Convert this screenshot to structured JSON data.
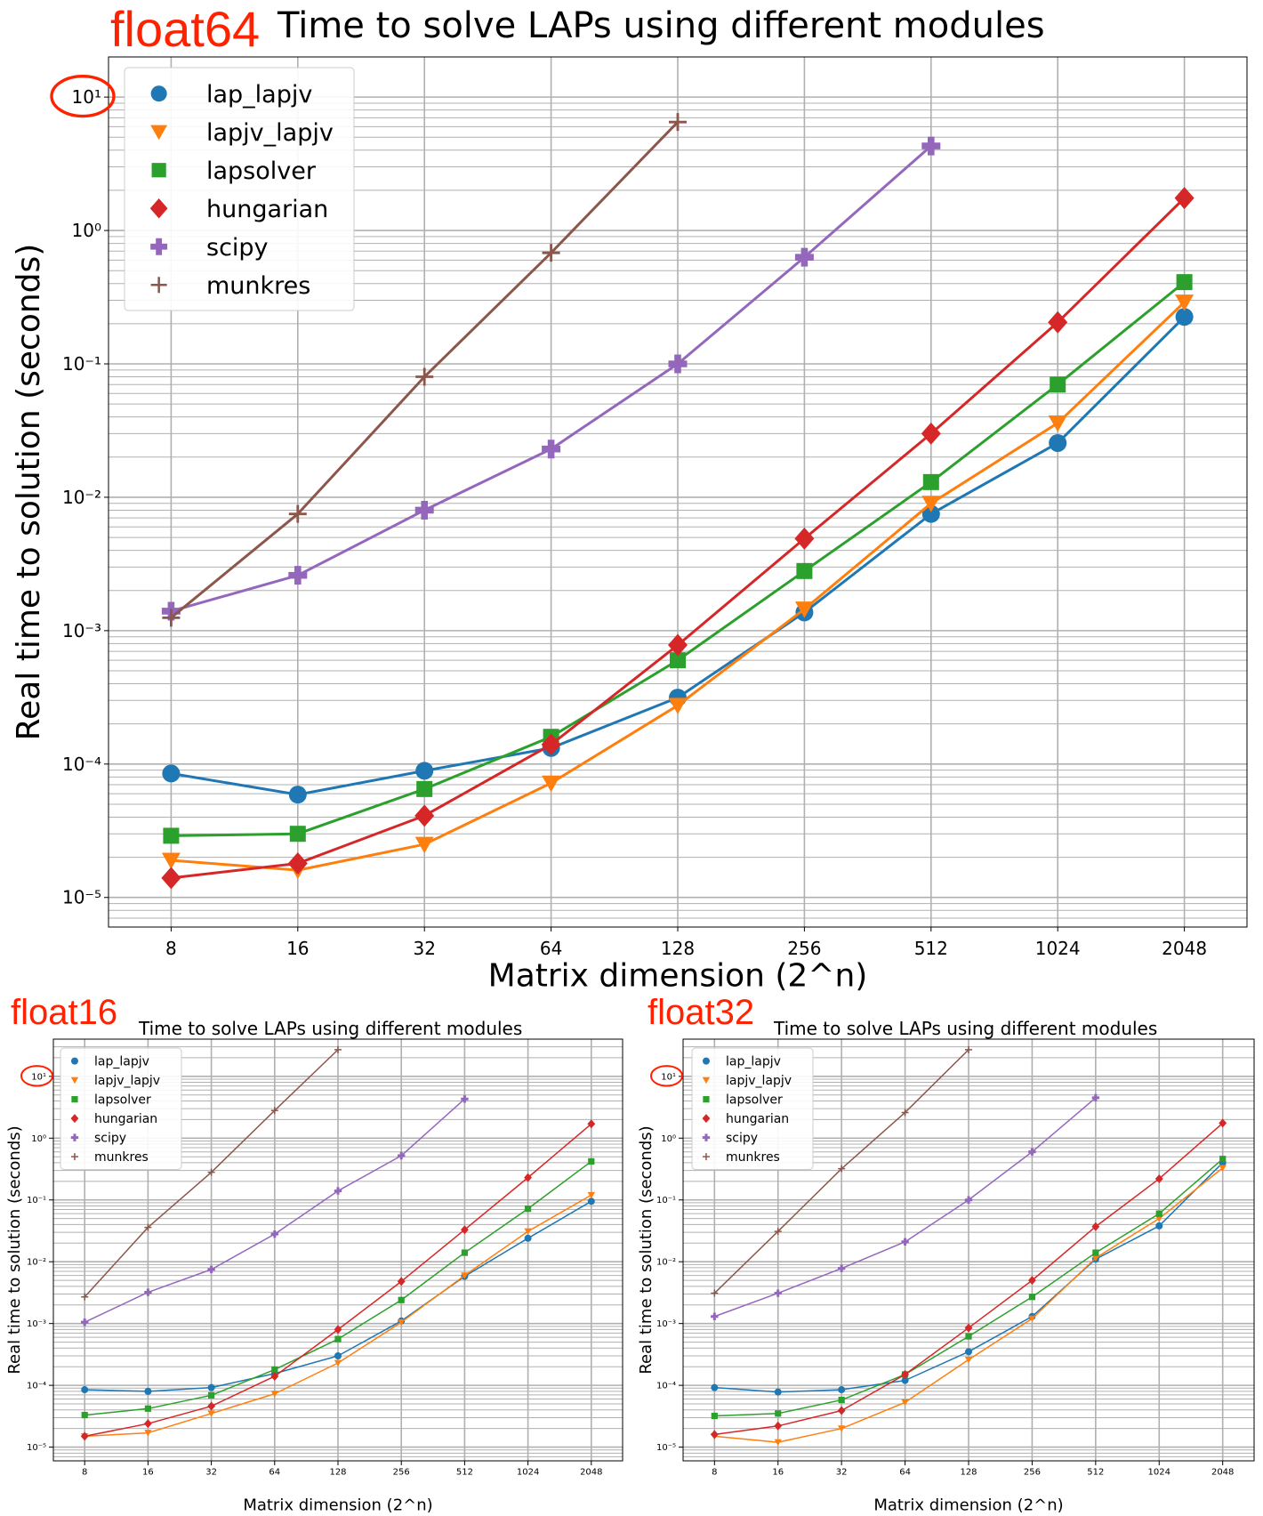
{
  "chart_data": [
    {
      "type": "line",
      "label": "float64",
      "title": "Time to solve LAPs using different modules",
      "xlabel": "Matrix dimension (2^n)",
      "ylabel": "Real time to solution (seconds)",
      "yscale": "log",
      "ylim": [
        6e-06,
        20
      ],
      "grid": true,
      "legend": "top-left",
      "highlight": "10^1 tick circled in red",
      "categories": [
        "8",
        "16",
        "32",
        "64",
        "128",
        "256",
        "512",
        "1024",
        "2048"
      ],
      "series": [
        {
          "name": "lap_lapjv",
          "color": "#1f77b4",
          "marker": "circle",
          "values": [
            8.5e-05,
            5.9e-05,
            8.9e-05,
            0.000132,
            0.000315,
            0.00137,
            0.0075,
            0.0255,
            0.225
          ]
        },
        {
          "name": "lapjv_lapjv",
          "color": "#ff7f0e",
          "marker": "triangle-down",
          "values": [
            1.9e-05,
            1.6e-05,
            2.5e-05,
            7.2e-05,
            0.000275,
            0.00145,
            0.009,
            0.036,
            0.29
          ]
        },
        {
          "name": "lapsolver",
          "color": "#2ca02c",
          "marker": "square",
          "values": [
            2.9e-05,
            3e-05,
            6.5e-05,
            0.00016,
            0.0006,
            0.0028,
            0.013,
            0.07,
            0.41
          ]
        },
        {
          "name": "hungarian",
          "color": "#d62728",
          "marker": "diamond",
          "values": [
            1.4e-05,
            1.8e-05,
            4.1e-05,
            0.00014,
            0.00078,
            0.0049,
            0.03,
            0.205,
            1.75
          ]
        },
        {
          "name": "scipy",
          "color": "#9467bd",
          "marker": "plus-filled",
          "values": [
            0.0014,
            0.0026,
            0.008,
            0.023,
            0.1,
            0.63,
            4.3,
            null,
            null
          ]
        },
        {
          "name": "munkres",
          "color": "#8c564b",
          "marker": "plus",
          "values": [
            0.00125,
            0.0075,
            0.08,
            0.68,
            6.5,
            null,
            null,
            null,
            null
          ]
        }
      ]
    },
    {
      "type": "line",
      "label": "float16",
      "title": "Time to solve LAPs using different modules",
      "xlabel": "Matrix dimension (2^n)",
      "ylabel": "Real time to solution (seconds)",
      "yscale": "log",
      "ylim": [
        6e-06,
        40
      ],
      "grid": true,
      "legend": "top-left",
      "highlight": "10^1 tick circled in red",
      "categories": [
        "8",
        "16",
        "32",
        "64",
        "128",
        "256",
        "512",
        "1024",
        "2048"
      ],
      "series": [
        {
          "name": "lap_lapjv",
          "color": "#1f77b4",
          "marker": "circle",
          "values": [
            8.5e-05,
            8e-05,
            9.2e-05,
            0.000155,
            0.0003,
            0.0011,
            0.0058,
            0.024,
            0.095
          ]
        },
        {
          "name": "lapjv_lapjv",
          "color": "#ff7f0e",
          "marker": "triangle-down",
          "values": [
            1.5e-05,
            1.7e-05,
            3.5e-05,
            7.3e-05,
            0.00023,
            0.00105,
            0.006,
            0.031,
            0.12
          ]
        },
        {
          "name": "lapsolver",
          "color": "#2ca02c",
          "marker": "square",
          "values": [
            3.3e-05,
            4.2e-05,
            6.9e-05,
            0.00018,
            0.00056,
            0.0024,
            0.014,
            0.072,
            0.42
          ]
        },
        {
          "name": "hungarian",
          "color": "#d62728",
          "marker": "diamond",
          "values": [
            1.5e-05,
            2.4e-05,
            4.6e-05,
            0.00014,
            0.0008,
            0.0048,
            0.033,
            0.23,
            1.7
          ]
        },
        {
          "name": "scipy",
          "color": "#9467bd",
          "marker": "plus-filled",
          "values": [
            0.00105,
            0.0032,
            0.0075,
            0.028,
            0.14,
            0.52,
            4.3,
            null,
            null
          ]
        },
        {
          "name": "munkres",
          "color": "#8c564b",
          "marker": "plus",
          "values": [
            0.0027,
            0.036,
            0.28,
            2.8,
            27,
            null,
            null,
            null,
            null
          ]
        }
      ]
    },
    {
      "type": "line",
      "label": "float32",
      "title": "Time to solve LAPs using different modules",
      "xlabel": "Matrix dimension (2^n)",
      "ylabel": "Real time to solution (seconds)",
      "yscale": "log",
      "ylim": [
        6e-06,
        40
      ],
      "grid": true,
      "legend": "top-left",
      "highlight": "10^1 tick circled in red",
      "categories": [
        "8",
        "16",
        "32",
        "64",
        "128",
        "256",
        "512",
        "1024",
        "2048"
      ],
      "series": [
        {
          "name": "lap_lapjv",
          "color": "#1f77b4",
          "marker": "circle",
          "values": [
            9.2e-05,
            7.8e-05,
            8.5e-05,
            0.00012,
            0.00035,
            0.0013,
            0.011,
            0.038,
            0.4
          ]
        },
        {
          "name": "lapjv_lapjv",
          "color": "#ff7f0e",
          "marker": "triangle-down",
          "values": [
            1.5e-05,
            1.2e-05,
            2e-05,
            5.3e-05,
            0.00026,
            0.0012,
            0.0115,
            0.05,
            0.33
          ]
        },
        {
          "name": "lapsolver",
          "color": "#2ca02c",
          "marker": "square",
          "values": [
            3.2e-05,
            3.5e-05,
            5.8e-05,
            0.00015,
            0.00062,
            0.0027,
            0.014,
            0.06,
            0.46
          ]
        },
        {
          "name": "hungarian",
          "color": "#d62728",
          "marker": "diamond",
          "values": [
            1.6e-05,
            2.2e-05,
            3.9e-05,
            0.00015,
            0.00085,
            0.005,
            0.037,
            0.22,
            1.75
          ]
        },
        {
          "name": "scipy",
          "color": "#9467bd",
          "marker": "plus-filled",
          "values": [
            0.0013,
            0.0031,
            0.0078,
            0.021,
            0.1,
            0.6,
            4.5,
            null,
            null
          ]
        },
        {
          "name": "munkres",
          "color": "#8c564b",
          "marker": "plus",
          "values": [
            0.0031,
            0.031,
            0.32,
            2.6,
            27,
            null,
            null,
            null,
            null
          ]
        }
      ]
    }
  ]
}
